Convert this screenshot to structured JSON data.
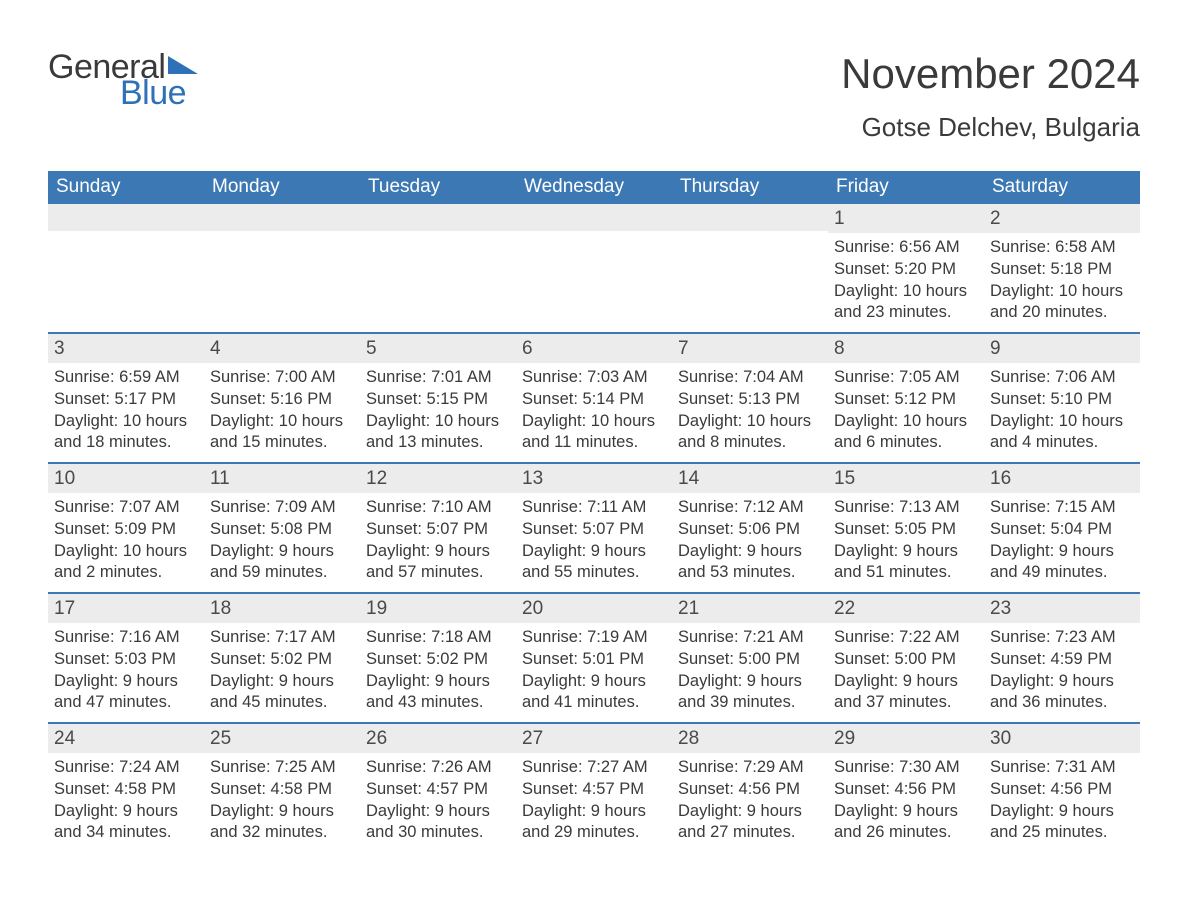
{
  "logo": {
    "text1": "General",
    "text2": "Blue",
    "tri_color": "#2f71b8"
  },
  "title": "November 2024",
  "location": "Gotse Delchev, Bulgaria",
  "header_bg": "#3c78b4",
  "daynum_bg": "#ececec",
  "border_color": "#3c78b4",
  "text_color": "#3a3a3a",
  "weekdays": [
    "Sunday",
    "Monday",
    "Tuesday",
    "Wednesday",
    "Thursday",
    "Friday",
    "Saturday"
  ],
  "weeks": [
    [
      null,
      null,
      null,
      null,
      null,
      {
        "n": "1",
        "sunrise": "6:56 AM",
        "sunset": "5:20 PM",
        "dl1": "10 hours",
        "dl2": "and 23 minutes."
      },
      {
        "n": "2",
        "sunrise": "6:58 AM",
        "sunset": "5:18 PM",
        "dl1": "10 hours",
        "dl2": "and 20 minutes."
      }
    ],
    [
      {
        "n": "3",
        "sunrise": "6:59 AM",
        "sunset": "5:17 PM",
        "dl1": "10 hours",
        "dl2": "and 18 minutes."
      },
      {
        "n": "4",
        "sunrise": "7:00 AM",
        "sunset": "5:16 PM",
        "dl1": "10 hours",
        "dl2": "and 15 minutes."
      },
      {
        "n": "5",
        "sunrise": "7:01 AM",
        "sunset": "5:15 PM",
        "dl1": "10 hours",
        "dl2": "and 13 minutes."
      },
      {
        "n": "6",
        "sunrise": "7:03 AM",
        "sunset": "5:14 PM",
        "dl1": "10 hours",
        "dl2": "and 11 minutes."
      },
      {
        "n": "7",
        "sunrise": "7:04 AM",
        "sunset": "5:13 PM",
        "dl1": "10 hours",
        "dl2": "and 8 minutes."
      },
      {
        "n": "8",
        "sunrise": "7:05 AM",
        "sunset": "5:12 PM",
        "dl1": "10 hours",
        "dl2": "and 6 minutes."
      },
      {
        "n": "9",
        "sunrise": "7:06 AM",
        "sunset": "5:10 PM",
        "dl1": "10 hours",
        "dl2": "and 4 minutes."
      }
    ],
    [
      {
        "n": "10",
        "sunrise": "7:07 AM",
        "sunset": "5:09 PM",
        "dl1": "10 hours",
        "dl2": "and 2 minutes."
      },
      {
        "n": "11",
        "sunrise": "7:09 AM",
        "sunset": "5:08 PM",
        "dl1": "9 hours",
        "dl2": "and 59 minutes."
      },
      {
        "n": "12",
        "sunrise": "7:10 AM",
        "sunset": "5:07 PM",
        "dl1": "9 hours",
        "dl2": "and 57 minutes."
      },
      {
        "n": "13",
        "sunrise": "7:11 AM",
        "sunset": "5:07 PM",
        "dl1": "9 hours",
        "dl2": "and 55 minutes."
      },
      {
        "n": "14",
        "sunrise": "7:12 AM",
        "sunset": "5:06 PM",
        "dl1": "9 hours",
        "dl2": "and 53 minutes."
      },
      {
        "n": "15",
        "sunrise": "7:13 AM",
        "sunset": "5:05 PM",
        "dl1": "9 hours",
        "dl2": "and 51 minutes."
      },
      {
        "n": "16",
        "sunrise": "7:15 AM",
        "sunset": "5:04 PM",
        "dl1": "9 hours",
        "dl2": "and 49 minutes."
      }
    ],
    [
      {
        "n": "17",
        "sunrise": "7:16 AM",
        "sunset": "5:03 PM",
        "dl1": "9 hours",
        "dl2": "and 47 minutes."
      },
      {
        "n": "18",
        "sunrise": "7:17 AM",
        "sunset": "5:02 PM",
        "dl1": "9 hours",
        "dl2": "and 45 minutes."
      },
      {
        "n": "19",
        "sunrise": "7:18 AM",
        "sunset": "5:02 PM",
        "dl1": "9 hours",
        "dl2": "and 43 minutes."
      },
      {
        "n": "20",
        "sunrise": "7:19 AM",
        "sunset": "5:01 PM",
        "dl1": "9 hours",
        "dl2": "and 41 minutes."
      },
      {
        "n": "21",
        "sunrise": "7:21 AM",
        "sunset": "5:00 PM",
        "dl1": "9 hours",
        "dl2": "and 39 minutes."
      },
      {
        "n": "22",
        "sunrise": "7:22 AM",
        "sunset": "5:00 PM",
        "dl1": "9 hours",
        "dl2": "and 37 minutes."
      },
      {
        "n": "23",
        "sunrise": "7:23 AM",
        "sunset": "4:59 PM",
        "dl1": "9 hours",
        "dl2": "and 36 minutes."
      }
    ],
    [
      {
        "n": "24",
        "sunrise": "7:24 AM",
        "sunset": "4:58 PM",
        "dl1": "9 hours",
        "dl2": "and 34 minutes."
      },
      {
        "n": "25",
        "sunrise": "7:25 AM",
        "sunset": "4:58 PM",
        "dl1": "9 hours",
        "dl2": "and 32 minutes."
      },
      {
        "n": "26",
        "sunrise": "7:26 AM",
        "sunset": "4:57 PM",
        "dl1": "9 hours",
        "dl2": "and 30 minutes."
      },
      {
        "n": "27",
        "sunrise": "7:27 AM",
        "sunset": "4:57 PM",
        "dl1": "9 hours",
        "dl2": "and 29 minutes."
      },
      {
        "n": "28",
        "sunrise": "7:29 AM",
        "sunset": "4:56 PM",
        "dl1": "9 hours",
        "dl2": "and 27 minutes."
      },
      {
        "n": "29",
        "sunrise": "7:30 AM",
        "sunset": "4:56 PM",
        "dl1": "9 hours",
        "dl2": "and 26 minutes."
      },
      {
        "n": "30",
        "sunrise": "7:31 AM",
        "sunset": "4:56 PM",
        "dl1": "9 hours",
        "dl2": "and 25 minutes."
      }
    ]
  ],
  "labels": {
    "sunrise": "Sunrise:",
    "sunset": "Sunset:",
    "daylight": "Daylight:"
  }
}
